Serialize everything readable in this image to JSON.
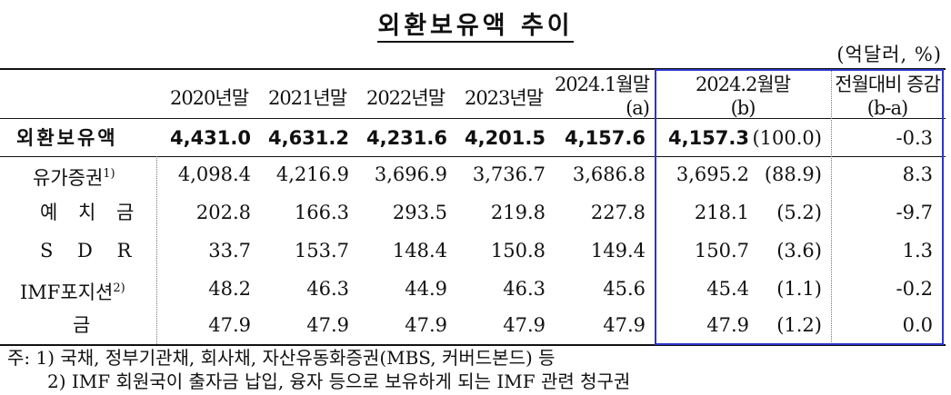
{
  "title": "외환보유액 추이",
  "unit": "(억달러, %)",
  "headers": {
    "col_2020": "2020년말",
    "col_2021": "2021년말",
    "col_2022": "2022년말",
    "col_2023": "2023년말",
    "col_2024_1": "2024.1월말",
    "col_2024_1_sub": "(a)",
    "col_2024_2": "2024.2월말",
    "col_2024_2_sub": "(b)",
    "col_change": "전월대비 증감",
    "col_change_sub": "(b-a)"
  },
  "rows": [
    {
      "label": "외환보유액",
      "v2020": "4,431.0",
      "v2021": "4,631.2",
      "v2022": "4,231.6",
      "v2023": "4,201.5",
      "v2024_1": "4,157.6",
      "v2024_2": "4,157.3",
      "share": "(100.0)",
      "change": "-0.3"
    },
    {
      "label": "유가증권",
      "label_sup": "1)",
      "v2020": "4,098.4",
      "v2021": "4,216.9",
      "v2022": "3,696.9",
      "v2023": "3,736.7",
      "v2024_1": "3,686.8",
      "v2024_2": "3,695.2",
      "share": "(88.9)",
      "change": "8.3"
    },
    {
      "label": "예 치 금",
      "v2020": "202.8",
      "v2021": "166.3",
      "v2022": "293.5",
      "v2023": "219.8",
      "v2024_1": "227.8",
      "v2024_2": "218.1",
      "share": "(5.2)",
      "change": "-9.7"
    },
    {
      "label": "S D R",
      "v2020": "33.7",
      "v2021": "153.7",
      "v2022": "148.4",
      "v2023": "150.8",
      "v2024_1": "149.4",
      "v2024_2": "150.7",
      "share": "(3.6)",
      "change": "1.3"
    },
    {
      "label": "IMF포지션",
      "label_sup": "2)",
      "v2020": "48.2",
      "v2021": "46.3",
      "v2022": "44.9",
      "v2023": "46.3",
      "v2024_1": "45.6",
      "v2024_2": "45.4",
      "share": "(1.1)",
      "change": "-0.2"
    },
    {
      "label": "금",
      "v2020": "47.9",
      "v2021": "47.9",
      "v2022": "47.9",
      "v2023": "47.9",
      "v2024_1": "47.9",
      "v2024_2": "47.9",
      "share": "(1.2)",
      "change": "0.0"
    }
  ],
  "notes": {
    "note1": "주: 1) 국채, 정부기관채, 회사채, 자산유동화증권(MBS, 커버드본드) 등",
    "note2": "2) IMF 회원국이 출자금 납입, 융자 등으로 보유하게 되는 IMF 관련 청구권"
  }
}
